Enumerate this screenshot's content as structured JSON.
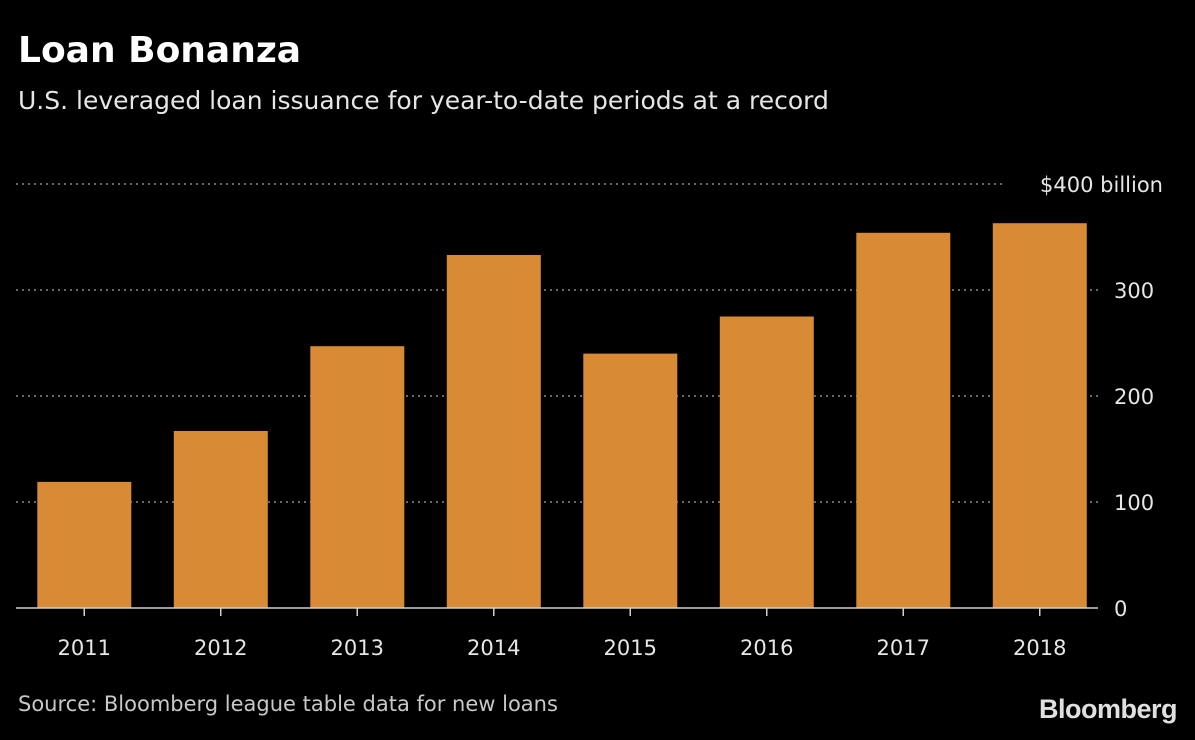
{
  "title": "Loan Bonanza",
  "subtitle": "U.S. leveraged loan issuance for year-to-date periods at a record",
  "source": "Source: Bloomberg league table data for new loans",
  "brand": "Bloomberg",
  "colors": {
    "background": "#000000",
    "bar": "#d98a35",
    "grid": "#8a8a8a",
    "text": "#ffffff"
  },
  "chart_data": {
    "type": "bar",
    "categories": [
      "2011",
      "2012",
      "2013",
      "2014",
      "2015",
      "2016",
      "2017",
      "2018"
    ],
    "values": [
      119,
      167,
      247,
      333,
      240,
      275,
      354,
      363
    ],
    "ylim": [
      0,
      400
    ],
    "yticks": [
      0,
      100,
      200,
      300,
      400
    ],
    "ytick_labels": [
      "0",
      "100",
      "200",
      "300",
      "$400 billion"
    ],
    "grid": true,
    "axis_position": "right"
  }
}
